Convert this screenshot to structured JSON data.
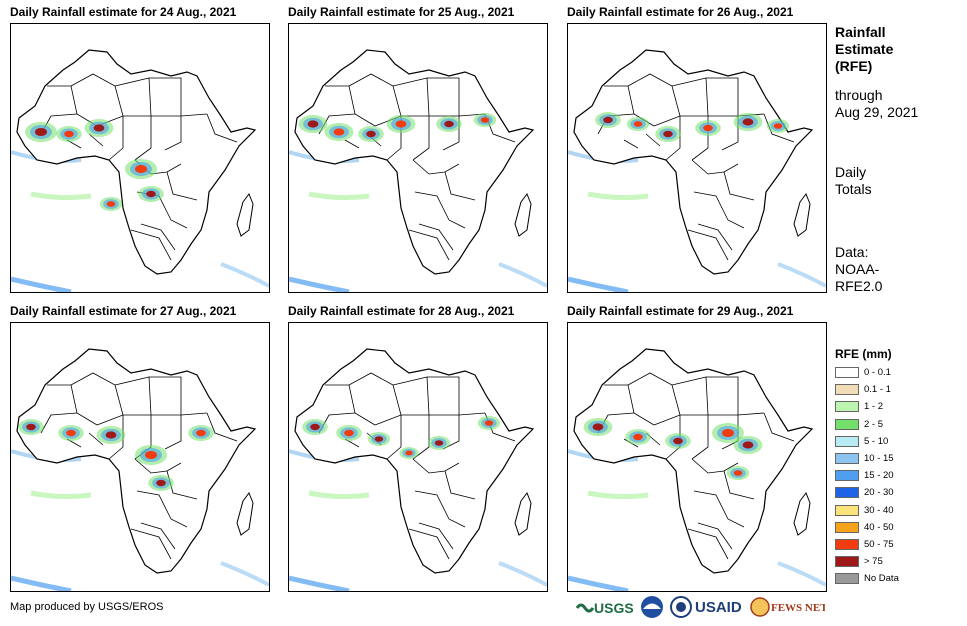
{
  "panels": [
    {
      "title": "Daily Rainfall estimate for 24 Aug., 2021"
    },
    {
      "title": "Daily Rainfall estimate for 25 Aug., 2021"
    },
    {
      "title": "Daily Rainfall estimate for 26 Aug., 2021"
    },
    {
      "title": "Daily Rainfall estimate for 27 Aug., 2021"
    },
    {
      "title": "Daily Rainfall estimate for 28 Aug., 2021"
    },
    {
      "title": "Daily Rainfall estimate for 29 Aug., 2021"
    }
  ],
  "side": {
    "title_lines": [
      "Rainfall",
      "Estimate",
      "(RFE)"
    ],
    "through_lines": [
      "through",
      "Aug 29, 2021"
    ],
    "totals_lines": [
      "Daily",
      "Totals"
    ],
    "data_lines": [
      "Data:",
      "NOAA-",
      "RFE2.0"
    ]
  },
  "legend": {
    "title": "RFE (mm)",
    "items": [
      {
        "label": "0 - 0.1",
        "color": "#ffffff"
      },
      {
        "label": "0.1 - 1",
        "color": "#f2dcb8"
      },
      {
        "label": "1 - 2",
        "color": "#bdf5b0"
      },
      {
        "label": "2 - 5",
        "color": "#72e06a"
      },
      {
        "label": "5 - 10",
        "color": "#b7ecf5"
      },
      {
        "label": "10 - 15",
        "color": "#8ec5f0"
      },
      {
        "label": "15 - 20",
        "color": "#4f9ef0"
      },
      {
        "label": "20 - 30",
        "color": "#1f63e6"
      },
      {
        "label": "30 - 40",
        "color": "#fbe27a"
      },
      {
        "label": "40 - 50",
        "color": "#f5a31a"
      },
      {
        "label": "50 - 75",
        "color": "#f03c10"
      },
      {
        "label": "> 75",
        "color": "#9e1a1a"
      },
      {
        "label": "No Data",
        "color": "#999999"
      }
    ]
  },
  "footer": {
    "credit": "Map produced by USGS/EROS"
  },
  "logos": [
    {
      "name": "usgs-logo",
      "text": "USGS",
      "color": "#1f6e43"
    },
    {
      "name": "noaa-logo",
      "text": "",
      "color": "#1f4fa0"
    },
    {
      "name": "usaid-seal-logo",
      "text": "",
      "color": "#1f3f7a"
    },
    {
      "name": "usaid-logo",
      "text": "USAID",
      "color": "#1f3f7a"
    },
    {
      "name": "fews-net-logo",
      "text": "FEWS NET",
      "color": "#a33a1a"
    }
  ]
}
